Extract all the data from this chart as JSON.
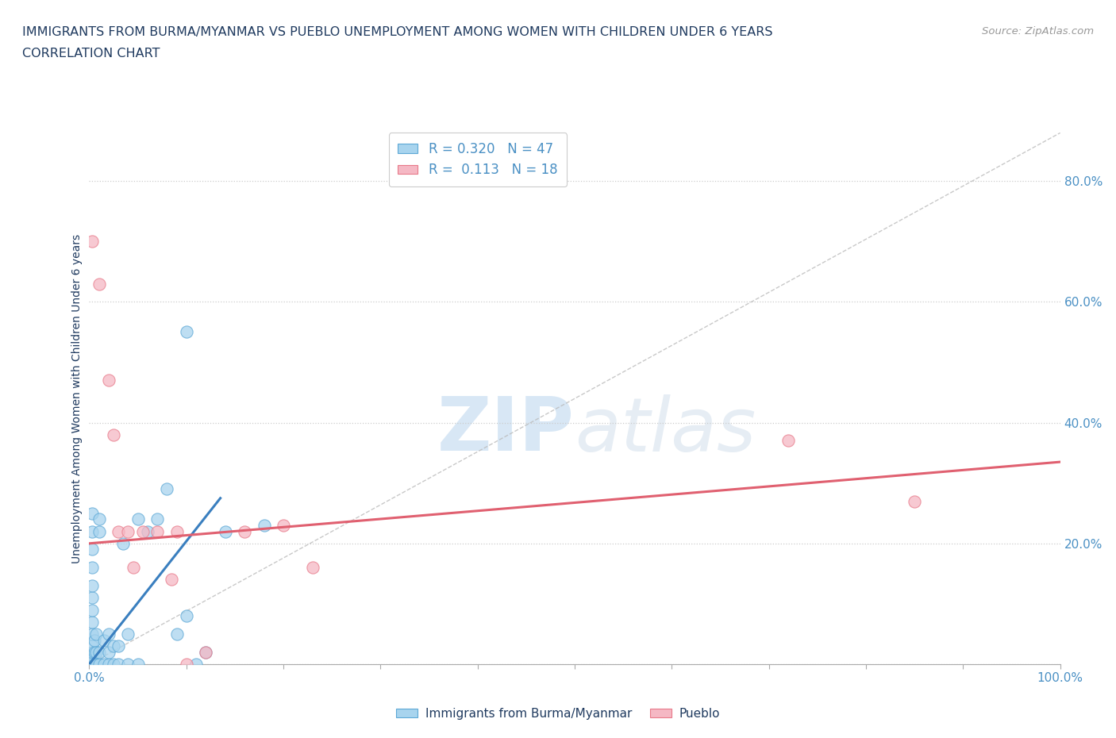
{
  "title": "IMMIGRANTS FROM BURMA/MYANMAR VS PUEBLO UNEMPLOYMENT AMONG WOMEN WITH CHILDREN UNDER 6 YEARS",
  "subtitle": "CORRELATION CHART",
  "source": "Source: ZipAtlas.com",
  "ylabel": "Unemployment Among Women with Children Under 6 years",
  "xlim": [
    0.0,
    1.0
  ],
  "ylim": [
    0.0,
    0.88
  ],
  "xticks": [
    0.0,
    0.1,
    0.2,
    0.3,
    0.4,
    0.5,
    0.6,
    0.7,
    0.8,
    0.9,
    1.0
  ],
  "yticks": [
    0.0,
    0.2,
    0.4,
    0.6,
    0.8
  ],
  "blue_R": "0.320",
  "blue_N": "47",
  "pink_R": "0.113",
  "pink_N": "18",
  "blue_color": "#A8D4EE",
  "pink_color": "#F5B8C4",
  "blue_edge_color": "#5DA8D6",
  "pink_edge_color": "#E87A8A",
  "blue_line_color": "#3A7FBF",
  "pink_line_color": "#E06070",
  "diagonal_color": "#BBBBBB",
  "watermark_zip": "ZIP",
  "watermark_atlas": "atlas",
  "title_color": "#1F3A5F",
  "label_color": "#4A90C4",
  "blue_scatter": [
    [
      0.003,
      0.0
    ],
    [
      0.003,
      0.01
    ],
    [
      0.003,
      0.02
    ],
    [
      0.003,
      0.03
    ],
    [
      0.003,
      0.05
    ],
    [
      0.003,
      0.07
    ],
    [
      0.003,
      0.09
    ],
    [
      0.003,
      0.11
    ],
    [
      0.003,
      0.13
    ],
    [
      0.003,
      0.16
    ],
    [
      0.003,
      0.19
    ],
    [
      0.003,
      0.22
    ],
    [
      0.003,
      0.25
    ],
    [
      0.005,
      0.0
    ],
    [
      0.005,
      0.02
    ],
    [
      0.005,
      0.04
    ],
    [
      0.007,
      0.0
    ],
    [
      0.007,
      0.02
    ],
    [
      0.007,
      0.05
    ],
    [
      0.01,
      0.0
    ],
    [
      0.01,
      0.02
    ],
    [
      0.01,
      0.22
    ],
    [
      0.01,
      0.24
    ],
    [
      0.015,
      0.0
    ],
    [
      0.015,
      0.04
    ],
    [
      0.02,
      0.0
    ],
    [
      0.02,
      0.02
    ],
    [
      0.02,
      0.05
    ],
    [
      0.025,
      0.0
    ],
    [
      0.025,
      0.03
    ],
    [
      0.03,
      0.0
    ],
    [
      0.03,
      0.03
    ],
    [
      0.035,
      0.2
    ],
    [
      0.04,
      0.0
    ],
    [
      0.04,
      0.05
    ],
    [
      0.05,
      0.0
    ],
    [
      0.05,
      0.24
    ],
    [
      0.06,
      0.22
    ],
    [
      0.07,
      0.24
    ],
    [
      0.08,
      0.29
    ],
    [
      0.09,
      0.05
    ],
    [
      0.1,
      0.08
    ],
    [
      0.1,
      0.55
    ],
    [
      0.11,
      0.0
    ],
    [
      0.12,
      0.02
    ],
    [
      0.14,
      0.22
    ],
    [
      0.18,
      0.23
    ]
  ],
  "pink_scatter": [
    [
      0.003,
      0.7
    ],
    [
      0.01,
      0.63
    ],
    [
      0.02,
      0.47
    ],
    [
      0.025,
      0.38
    ],
    [
      0.03,
      0.22
    ],
    [
      0.04,
      0.22
    ],
    [
      0.045,
      0.16
    ],
    [
      0.055,
      0.22
    ],
    [
      0.07,
      0.22
    ],
    [
      0.085,
      0.14
    ],
    [
      0.09,
      0.22
    ],
    [
      0.1,
      0.0
    ],
    [
      0.12,
      0.02
    ],
    [
      0.16,
      0.22
    ],
    [
      0.2,
      0.23
    ],
    [
      0.23,
      0.16
    ],
    [
      0.72,
      0.37
    ],
    [
      0.85,
      0.27
    ]
  ],
  "blue_line_x": [
    0.0,
    0.135
  ],
  "blue_line_y": [
    0.0,
    0.275
  ],
  "pink_line_x": [
    0.0,
    1.0
  ],
  "pink_line_y": [
    0.2,
    0.335
  ],
  "background_color": "#FFFFFF"
}
